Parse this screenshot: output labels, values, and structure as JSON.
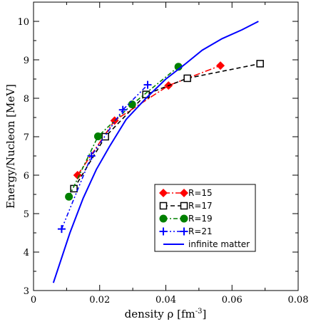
{
  "chart_data": {
    "type": "line",
    "xlabel_main": "density ρ [fm",
    "xlabel_sup": "-3",
    "xlabel_tail": "]",
    "ylabel": "Energy/Nucleon [MeV]",
    "xlim": [
      0,
      0.08
    ],
    "ylim": [
      3,
      10.5
    ],
    "x_ticks": [
      0,
      0.02,
      0.04,
      0.06,
      0.08
    ],
    "x_tick_labels": [
      "0",
      "0.02",
      "0.04",
      "0.06",
      "0.08"
    ],
    "y_ticks": [
      3,
      4,
      5,
      6,
      7,
      8,
      9,
      10
    ],
    "y_tick_labels": [
      "3",
      "4",
      "5",
      "6",
      "7",
      "8",
      "9",
      "10"
    ],
    "legend_position": "bottom-right",
    "series": [
      {
        "name": "R=15",
        "color": "#ff0000",
        "marker": "diamond",
        "dash": "long-dash-dot",
        "points": [
          [
            0.0133,
            6.0
          ],
          [
            0.0245,
            7.42
          ],
          [
            0.0408,
            8.33
          ],
          [
            0.0565,
            8.85
          ]
        ]
      },
      {
        "name": "R=17",
        "color": "#000000",
        "marker": "square-open",
        "dash": "dashed",
        "points": [
          [
            0.0122,
            5.65
          ],
          [
            0.0217,
            7.0
          ],
          [
            0.034,
            8.1
          ],
          [
            0.0465,
            8.52
          ],
          [
            0.0685,
            8.9
          ]
        ]
      },
      {
        "name": "R=19",
        "color": "#008000",
        "marker": "circle",
        "dash": "dash-dot",
        "points": [
          [
            0.0107,
            5.44
          ],
          [
            0.0195,
            7.01
          ],
          [
            0.0298,
            7.84
          ],
          [
            0.0438,
            8.82
          ]
        ]
      },
      {
        "name": "R=21",
        "color": "#0000ff",
        "marker": "plus",
        "dash": "dash-dot-dot",
        "points": [
          [
            0.0085,
            4.6
          ],
          [
            0.0175,
            6.5
          ],
          [
            0.027,
            7.7
          ],
          [
            0.0345,
            8.35
          ]
        ]
      },
      {
        "name": "infinite matter",
        "color": "#0000ff",
        "marker": "none",
        "dash": "solid",
        "points": [
          [
            0.006,
            3.2
          ],
          [
            0.011,
            4.5
          ],
          [
            0.015,
            5.4
          ],
          [
            0.019,
            6.15
          ],
          [
            0.023,
            6.75
          ],
          [
            0.028,
            7.45
          ],
          [
            0.034,
            8.0
          ],
          [
            0.04,
            8.5
          ],
          [
            0.046,
            8.9
          ],
          [
            0.051,
            9.25
          ],
          [
            0.057,
            9.55
          ],
          [
            0.063,
            9.78
          ],
          [
            0.068,
            10.0
          ]
        ]
      }
    ]
  }
}
